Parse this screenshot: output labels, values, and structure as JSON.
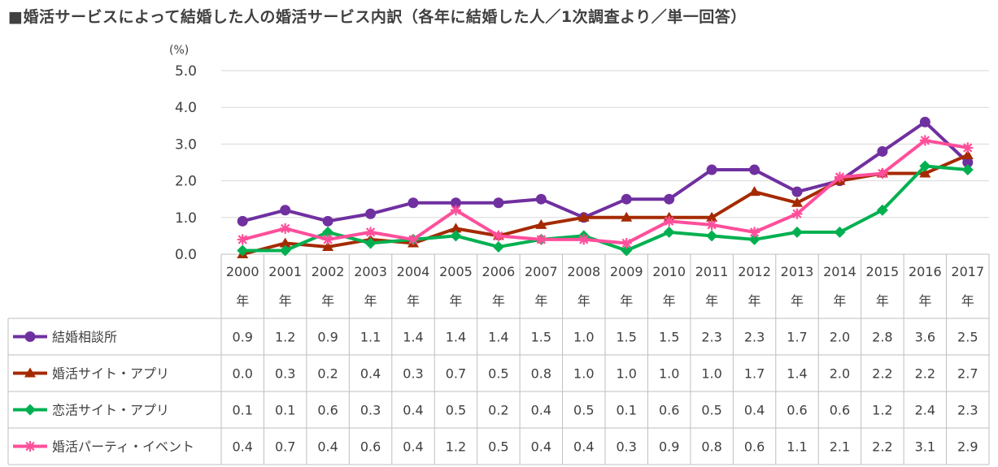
{
  "title": "■婚活サービスによって結婚した人の婚活サービス内訳（各年に結婚した人／1次調査より／単一回答）",
  "chart_data": {
    "type": "line",
    "title": "■婚活サービスによって結婚した人の婚活サービス内訳（各年に結婚した人／1次調査より／単一回答）",
    "unit_label": "(%)",
    "ylim": [
      0,
      5
    ],
    "yticks": [
      "0.0",
      "1.0",
      "2.0",
      "3.0",
      "4.0",
      "5.0"
    ],
    "grid": true,
    "legend_placement": "data-table-left",
    "categories": [
      "2000",
      "2001",
      "2002",
      "2003",
      "2004",
      "2005",
      "2006",
      "2007",
      "2008",
      "2009",
      "2010",
      "2011",
      "2012",
      "2013",
      "2014",
      "2015",
      "2016",
      "2017"
    ],
    "category_suffix": "年",
    "series": [
      {
        "name": "結婚相談所",
        "color": "#7030A0",
        "marker": "circle",
        "values": [
          0.9,
          1.2,
          0.9,
          1.1,
          1.4,
          1.4,
          1.4,
          1.5,
          1.0,
          1.5,
          1.5,
          2.3,
          2.3,
          1.7,
          2.0,
          2.8,
          3.6,
          2.5
        ],
        "labels": [
          "0.9",
          "1.2",
          "0.9",
          "1.1",
          "1.4",
          "1.4",
          "1.4",
          "1.5",
          "1.0",
          "1.5",
          "1.5",
          "2.3",
          "2.3",
          "1.7",
          "2.0",
          "2.8",
          "3.6",
          "2.5"
        ]
      },
      {
        "name": "婚活サイト・アプリ",
        "color": "#A52A00",
        "marker": "triangle",
        "values": [
          0.0,
          0.3,
          0.2,
          0.4,
          0.3,
          0.7,
          0.5,
          0.8,
          1.0,
          1.0,
          1.0,
          1.0,
          1.7,
          1.4,
          2.0,
          2.2,
          2.2,
          2.7
        ],
        "labels": [
          "0.0",
          "0.3",
          "0.2",
          "0.4",
          "0.3",
          "0.7",
          "0.5",
          "0.8",
          "1.0",
          "1.0",
          "1.0",
          "1.0",
          "1.7",
          "1.4",
          "2.0",
          "2.2",
          "2.2",
          "2.7"
        ]
      },
      {
        "name": "恋活サイト・アプリ",
        "color": "#00B050",
        "marker": "diamond",
        "values": [
          0.1,
          0.1,
          0.6,
          0.3,
          0.4,
          0.5,
          0.2,
          0.4,
          0.5,
          0.1,
          0.6,
          0.5,
          0.4,
          0.6,
          0.6,
          1.2,
          2.4,
          2.3
        ],
        "labels": [
          "0.1",
          "0.1",
          "0.6",
          "0.3",
          "0.4",
          "0.5",
          "0.2",
          "0.4",
          "0.5",
          "0.1",
          "0.6",
          "0.5",
          "0.4",
          "0.6",
          "0.6",
          "1.2",
          "2.4",
          "2.3"
        ]
      },
      {
        "name": "婚活パーティ・イベント",
        "color": "#FF4F9B",
        "marker": "asterisk",
        "values": [
          0.4,
          0.7,
          0.4,
          0.6,
          0.4,
          1.2,
          0.5,
          0.4,
          0.4,
          0.3,
          0.9,
          0.8,
          0.6,
          1.1,
          2.1,
          2.2,
          3.1,
          2.9
        ],
        "labels": [
          "0.4",
          "0.7",
          "0.4",
          "0.6",
          "0.4",
          "1.2",
          "0.5",
          "0.4",
          "0.4",
          "0.3",
          "0.9",
          "0.8",
          "0.6",
          "1.1",
          "2.1",
          "2.2",
          "3.1",
          "2.9"
        ]
      }
    ]
  }
}
